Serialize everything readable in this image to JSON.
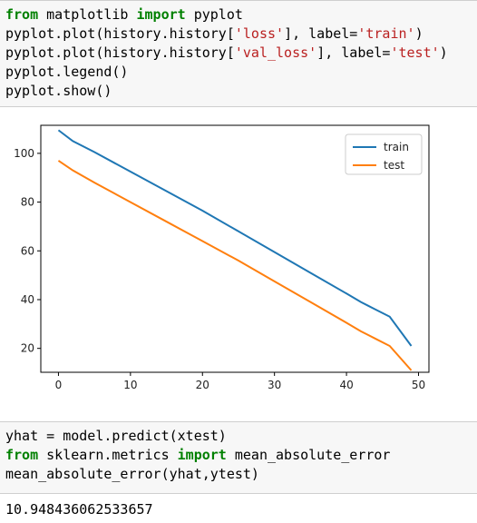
{
  "cells": [
    {
      "lines": [
        [
          {
            "t": "from",
            "k": "kw"
          },
          {
            "t": " matplotlib "
          },
          {
            "t": "import",
            "k": "kw"
          },
          {
            "t": " pyplot"
          }
        ],
        [
          {
            "t": "pyplot.plot(history.history["
          },
          {
            "t": "'loss'",
            "k": "str"
          },
          {
            "t": "], label="
          },
          {
            "t": "'train'",
            "k": "str"
          },
          {
            "t": ")"
          }
        ],
        [
          {
            "t": "pyplot.plot(history.history["
          },
          {
            "t": "'val_loss'",
            "k": "str"
          },
          {
            "t": "], label="
          },
          {
            "t": "'test'",
            "k": "str"
          },
          {
            "t": ")"
          }
        ],
        [
          {
            "t": "pyplot.legend()"
          }
        ],
        [
          {
            "t": "pyplot.show()"
          }
        ]
      ]
    },
    {
      "lines": [
        [
          {
            "t": "yhat = model.predict(xtest)"
          }
        ],
        [
          {
            "t": "from",
            "k": "kw"
          },
          {
            "t": " sklearn.metrics "
          },
          {
            "t": "import",
            "k": "kw"
          },
          {
            "t": " mean_absolute_error"
          }
        ],
        [
          {
            "t": "mean_absolute_error(yhat,ytest)"
          }
        ]
      ]
    }
  ],
  "output": {
    "value": "10.948436062533657"
  },
  "chart_data": {
    "type": "line",
    "xlim": [
      -2.45,
      51.45
    ],
    "ylim": [
      10.2,
      111.5
    ],
    "xticks": [
      0,
      10,
      20,
      30,
      40,
      50
    ],
    "yticks": [
      20,
      40,
      60,
      80,
      100
    ],
    "grid": false,
    "legend_position": "top-right",
    "x": [
      0,
      2,
      5,
      10,
      15,
      20,
      25,
      30,
      35,
      40,
      42,
      43,
      44,
      46,
      49
    ],
    "series": [
      {
        "name": "train",
        "color": "#1f77b4",
        "values": [
          109.5,
          105,
          100.5,
          92.5,
          84.5,
          76.5,
          68,
          59.5,
          51,
          42.5,
          39,
          37.5,
          36,
          33,
          21
        ]
      },
      {
        "name": "test",
        "color": "#ff7f0e",
        "values": [
          97,
          93,
          88,
          80,
          72,
          64,
          56,
          47.5,
          39,
          30.5,
          27,
          25.5,
          24,
          21,
          11
        ]
      }
    ]
  }
}
